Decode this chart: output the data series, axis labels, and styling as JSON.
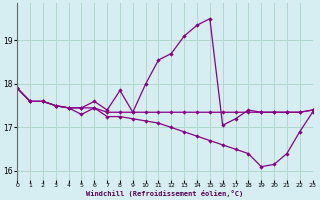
{
  "xlabel": "Windchill (Refroidissement éolien,°C)",
  "bg_color": "#d6eef2",
  "grid_color": "#b0d8cc",
  "line_color": "#880088",
  "hours": [
    0,
    1,
    2,
    3,
    4,
    5,
    6,
    7,
    8,
    9,
    10,
    11,
    12,
    13,
    14,
    15,
    16,
    17,
    18,
    19,
    20,
    21,
    22,
    23
  ],
  "lineA": [
    17.9,
    17.6,
    17.6,
    17.5,
    17.45,
    17.45,
    17.45,
    17.35,
    17.35,
    17.35,
    17.35,
    17.35,
    17.35,
    17.35,
    17.35,
    17.35,
    17.35,
    17.35,
    17.35,
    17.35,
    17.35,
    17.35,
    17.35,
    17.4
  ],
  "lineB": [
    17.9,
    17.6,
    17.6,
    17.5,
    17.45,
    17.45,
    17.6,
    17.4,
    17.85,
    17.35,
    18.0,
    18.55,
    18.7,
    19.1,
    19.35,
    19.5,
    17.05,
    17.2,
    17.4,
    17.35,
    17.35,
    17.35,
    17.35,
    17.4
  ],
  "lineC": [
    17.9,
    17.6,
    17.6,
    17.5,
    17.45,
    17.3,
    17.45,
    17.25,
    17.25,
    17.2,
    17.15,
    17.1,
    17.0,
    16.9,
    16.8,
    16.7,
    16.6,
    16.5,
    16.4,
    16.1,
    16.15,
    16.4,
    16.9,
    17.35
  ],
  "xlim": [
    0,
    23
  ],
  "ylim": [
    15.8,
    19.85
  ],
  "yticks": [
    16,
    17,
    18,
    19
  ],
  "xticks": [
    0,
    1,
    2,
    3,
    4,
    5,
    6,
    7,
    8,
    9,
    10,
    11,
    12,
    13,
    14,
    15,
    16,
    17,
    18,
    19,
    20,
    21,
    22,
    23
  ]
}
